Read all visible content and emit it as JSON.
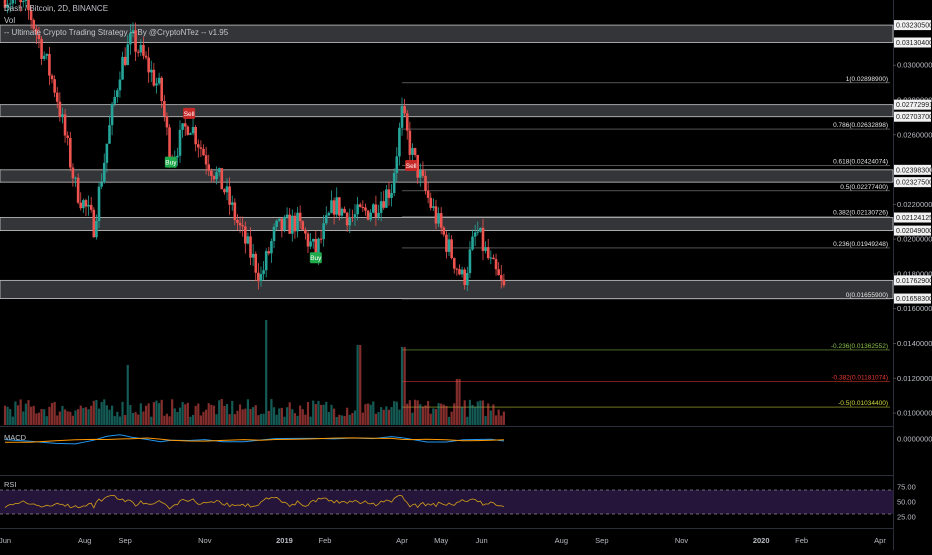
{
  "header": {
    "title": "Dash / Bitcoin, 2D, BINANCE",
    "volume_label": "Vol",
    "strategy_label": "-- Ultimate Crypto Trading Strategy -- By @CryptoNTez -- v1.95"
  },
  "panes": {
    "macd_label": "MACD",
    "rsi_label": "RSI"
  },
  "colors": {
    "up": "#26a69a",
    "down": "#ef5350",
    "zone": "#9e9e9e",
    "macd": "#2196f3",
    "signal": "#ff9800",
    "rsi": "#d4a017",
    "rsi_band": "#2a1740",
    "buy": "#1faa4b",
    "sell": "#c62828"
  },
  "chart_data": [
    {
      "type": "candlestick",
      "title": "Dash / Bitcoin, 2D, BINANCE",
      "x_labels": [
        "Jun",
        "Aug",
        "Sep",
        "Nov",
        "2019",
        "Feb",
        "Apr",
        "May",
        "Jun",
        "Aug",
        "Sep",
        "Nov",
        "2020",
        "Feb",
        "Apr"
      ],
      "price_ticks": [
        "0.03000000",
        "0.02800000",
        "0.02600000",
        "0.02400000",
        "0.02200000",
        "0.02000000",
        "0.01800000",
        "0.01600000",
        "0.01400000",
        "0.01200000",
        "0.01000000"
      ],
      "price_tags": [
        "0.03230500",
        "0.03130400",
        "0.02772991",
        "0.02703700",
        "0.02398300",
        "0.02327500",
        "0.02124125",
        "0.02049000",
        "0.01762900",
        "0.01658300"
      ],
      "support_resistance_zones": [
        [
          0.031304,
          0.032305
        ],
        [
          0.027037,
          0.02772991
        ],
        [
          0.023275,
          0.023983
        ],
        [
          0.02049,
          0.02124125
        ],
        [
          0.016583,
          0.017629
        ]
      ],
      "fibonacci_levels": [
        {
          "label": "1(0.02898900)",
          "value": 0.028989
        },
        {
          "label": "0.786(0.02632898)",
          "value": 0.02632898
        },
        {
          "label": "0.618(0.02424074)",
          "value": 0.02424074
        },
        {
          "label": "0.5(0.02277400)",
          "value": 0.022774
        },
        {
          "label": "0.382(0.02130726)",
          "value": 0.02130726
        },
        {
          "label": "0.236(0.01949248)",
          "value": 0.01949248
        },
        {
          "label": "0(0.01655900)",
          "value": 0.016559
        },
        {
          "label": "-0.236(0.01362552)",
          "value": 0.01362552
        },
        {
          "label": "-0.382(0.01181074)",
          "value": 0.01181074
        },
        {
          "label": "-0.5(0.01034400)",
          "value": 0.010344
        }
      ],
      "signals": [
        {
          "label": "Sell",
          "date": "2018-10-20",
          "price": 0.0272
        },
        {
          "label": "Buy",
          "date": "2018-10-06",
          "price": 0.0244
        },
        {
          "label": "Buy",
          "date": "2019-01-25",
          "price": 0.0189
        },
        {
          "label": "Sell",
          "date": "2019-04-08",
          "price": 0.0242
        }
      ],
      "close_series": [
        {
          "date": "2018-06-01",
          "value": 0.034
        },
        {
          "date": "2018-06-20",
          "value": 0.033
        },
        {
          "date": "2018-07-10",
          "value": 0.0285
        },
        {
          "date": "2018-07-25",
          "value": 0.023
        },
        {
          "date": "2018-08-08",
          "value": 0.0208
        },
        {
          "date": "2018-08-18",
          "value": 0.0255
        },
        {
          "date": "2018-08-28",
          "value": 0.0298
        },
        {
          "date": "2018-09-06",
          "value": 0.0315
        },
        {
          "date": "2018-09-18",
          "value": 0.03
        },
        {
          "date": "2018-09-28",
          "value": 0.0285
        },
        {
          "date": "2018-10-06",
          "value": 0.0246
        },
        {
          "date": "2018-10-20",
          "value": 0.0268
        },
        {
          "date": "2018-11-01",
          "value": 0.0248
        },
        {
          "date": "2018-11-15",
          "value": 0.023
        },
        {
          "date": "2018-12-01",
          "value": 0.02
        },
        {
          "date": "2018-12-14",
          "value": 0.0178
        },
        {
          "date": "2018-12-25",
          "value": 0.0205
        },
        {
          "date": "2019-01-10",
          "value": 0.021
        },
        {
          "date": "2019-01-25",
          "value": 0.0192
        },
        {
          "date": "2019-02-08",
          "value": 0.022
        },
        {
          "date": "2019-02-22",
          "value": 0.0212
        },
        {
          "date": "2019-03-10",
          "value": 0.0218
        },
        {
          "date": "2019-03-24",
          "value": 0.023
        },
        {
          "date": "2019-04-01",
          "value": 0.0272
        },
        {
          "date": "2019-04-08",
          "value": 0.025
        },
        {
          "date": "2019-04-20",
          "value": 0.0225
        },
        {
          "date": "2019-05-05",
          "value": 0.0198
        },
        {
          "date": "2019-05-18",
          "value": 0.0176
        },
        {
          "date": "2019-05-28",
          "value": 0.0205
        },
        {
          "date": "2019-06-08",
          "value": 0.0185
        },
        {
          "date": "2019-06-18",
          "value": 0.0171
        }
      ]
    },
    {
      "type": "bar",
      "title": "Vol",
      "x_labels": [
        "Jun",
        "Aug",
        "Sep",
        "Nov",
        "2019",
        "Feb",
        "Apr",
        "May",
        "Jun"
      ],
      "description": "volume bars coloured by candle direction; notable spikes at early Sep 2018, Dec 2018, Feb 2019 and Apr 2019"
    },
    {
      "type": "line",
      "title": "MACD",
      "y_tick": "0.00000000",
      "series": [
        {
          "name": "MACD"
        },
        {
          "name": "Signal"
        }
      ]
    },
    {
      "type": "line",
      "title": "RSI",
      "y_ticks": [
        "75.00",
        "50.00",
        "25.00"
      ],
      "ylim": [
        0,
        100
      ],
      "bands": [
        30,
        70
      ],
      "series": [
        {
          "name": "RSI"
        }
      ]
    }
  ]
}
